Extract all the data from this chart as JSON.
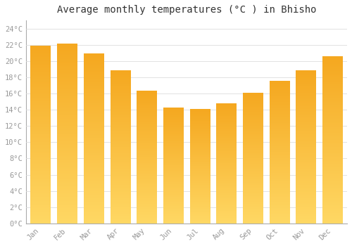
{
  "title": "Average monthly temperatures (°C ) in Bhisho",
  "months": [
    "Jan",
    "Feb",
    "Mar",
    "Apr",
    "May",
    "Jun",
    "Jul",
    "Aug",
    "Sep",
    "Oct",
    "Nov",
    "Dec"
  ],
  "values": [
    21.9,
    22.1,
    20.9,
    18.8,
    16.3,
    14.2,
    14.1,
    14.8,
    16.1,
    17.5,
    18.8,
    20.6
  ],
  "bar_color_top": "#F5A623",
  "bar_color_bottom": "#FFD060",
  "bar_color_right": "#FFD060",
  "ylim": [
    0,
    25
  ],
  "yticks": [
    0,
    2,
    4,
    6,
    8,
    10,
    12,
    14,
    16,
    18,
    20,
    22,
    24
  ],
  "grid_color": "#dddddd",
  "background_color": "#ffffff",
  "plot_bg_color": "#ffffff",
  "title_fontsize": 10,
  "tick_fontsize": 7.5,
  "bar_width": 0.75,
  "spine_color": "#aaaaaa",
  "tick_color": "#999999"
}
